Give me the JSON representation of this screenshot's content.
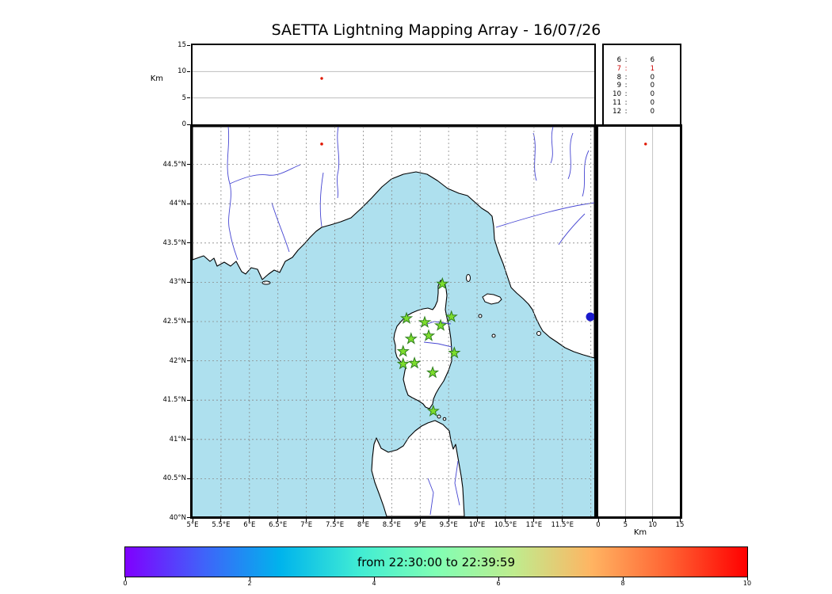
{
  "title": "SAETTA Lightning Mapping Array - 16/07/26",
  "colors": {
    "sea": "#aee0ee",
    "land": "#ffffff",
    "river": "#4646d2",
    "grid": "#8a8a8a",
    "star_fill": "#7ddd2d",
    "star_edge": "#2e7d1e",
    "source": "#e01800",
    "city_marker": "#1a1acc",
    "count_highlight": "#cc0000"
  },
  "altitude_panel": {
    "ylabel": "Km",
    "yticks": [
      15,
      10,
      5,
      0
    ],
    "grid": [
      5,
      10
    ]
  },
  "side_panel": {
    "xlabel": "Km",
    "xticks": [
      0,
      5,
      10,
      15
    ],
    "grid": [
      5,
      10
    ]
  },
  "station_count_panel": {
    "rows": [
      {
        "station": "6",
        "count": "6",
        "highlight": false
      },
      {
        "station": "7",
        "count": "1",
        "highlight": true
      },
      {
        "station": "8",
        "count": "0",
        "highlight": false
      },
      {
        "station": "9",
        "count": "0",
        "highlight": false
      },
      {
        "station": "10",
        "count": "0",
        "highlight": false
      },
      {
        "station": "11",
        "count": "0",
        "highlight": false
      },
      {
        "station": "12",
        "count": "0",
        "highlight": false
      }
    ]
  },
  "map_panel": {
    "lat_ticks": [
      {
        "v": 44.5,
        "label": "44.5°N"
      },
      {
        "v": 44.0,
        "label": "44°N"
      },
      {
        "v": 43.5,
        "label": "43.5°N"
      },
      {
        "v": 43.0,
        "label": "43°N"
      },
      {
        "v": 42.5,
        "label": "42.5°N"
      },
      {
        "v": 42.0,
        "label": "42°N"
      },
      {
        "v": 41.5,
        "label": "41.5°N"
      },
      {
        "v": 41.0,
        "label": "41°N"
      },
      {
        "v": 40.5,
        "label": "40.5°N"
      },
      {
        "v": 40.0,
        "label": "40°N"
      }
    ],
    "lon_ticks": [
      {
        "v": 5.0,
        "label": "5°E"
      },
      {
        "v": 5.5,
        "label": "5.5°E"
      },
      {
        "v": 6.0,
        "label": "6°E"
      },
      {
        "v": 6.5,
        "label": "6.5°E"
      },
      {
        "v": 7.0,
        "label": "7°E"
      },
      {
        "v": 7.5,
        "label": "7.5°E"
      },
      {
        "v": 8.0,
        "label": "8°E"
      },
      {
        "v": 8.5,
        "label": "8.5°E"
      },
      {
        "v": 9.0,
        "label": "9°E"
      },
      {
        "v": 9.5,
        "label": "9.5°E"
      },
      {
        "v": 10.0,
        "label": "10°E"
      },
      {
        "v": 10.5,
        "label": "10.5°E"
      },
      {
        "v": 11.0,
        "label": "11°E"
      },
      {
        "v": 11.5,
        "label": "11.5°E"
      }
    ],
    "grid_lons": [
      5.5,
      6.0,
      6.5,
      7.0,
      7.5,
      8.0,
      8.5,
      9.0,
      9.5,
      10.0,
      10.5,
      11.0,
      11.5,
      12.0
    ],
    "grid_lats": [
      44.5,
      44.0,
      43.5,
      43.0,
      42.5,
      42.0,
      41.5,
      41.0,
      40.5
    ]
  },
  "colorbar": {
    "label": "from 22:30:00 to 22:39:59",
    "ticks": [
      0,
      2,
      4,
      6,
      8,
      10
    ],
    "range": [
      0,
      10
    ]
  },
  "chart_data": {
    "type": "scatter",
    "title": "SAETTA Lightning Mapping Array - 16/07/26",
    "panels": [
      "altitude_vs_longitude",
      "map_lon_lat",
      "altitude_vs_latitude"
    ],
    "map_extent": {
      "lon": [
        5.0,
        12.06
      ],
      "lat": [
        40.02,
        44.98
      ]
    },
    "altitude_axis_km": {
      "range": [
        0,
        15
      ],
      "ticks": [
        0,
        5,
        10,
        15
      ]
    },
    "stations_lonlat": [
      [
        9.39,
        42.98
      ],
      [
        8.76,
        42.54
      ],
      [
        9.08,
        42.49
      ],
      [
        9.36,
        42.45
      ],
      [
        9.55,
        42.56
      ],
      [
        8.84,
        42.28
      ],
      [
        9.15,
        42.32
      ],
      [
        8.7,
        42.12
      ],
      [
        9.6,
        42.1
      ],
      [
        8.7,
        41.96
      ],
      [
        8.9,
        41.97
      ],
      [
        9.22,
        41.85
      ],
      [
        9.23,
        41.36
      ]
    ],
    "lightning_sources": [
      {
        "lon": 7.27,
        "lat": 44.76,
        "alt_km": 8.7
      }
    ],
    "blue_marker_lonlat": [
      11.99,
      42.56
    ],
    "station_contribution_histogram": {
      "6": 6,
      "7": 1,
      "8": 0,
      "9": 0,
      "10": 0,
      "11": 0,
      "12": 0
    },
    "colorbar": {
      "label": "from 22:30:00 to 22:39:59",
      "range": [
        0,
        10
      ],
      "ticks": [
        0,
        2,
        4,
        6,
        8,
        10
      ],
      "colormap": "rainbow"
    }
  }
}
